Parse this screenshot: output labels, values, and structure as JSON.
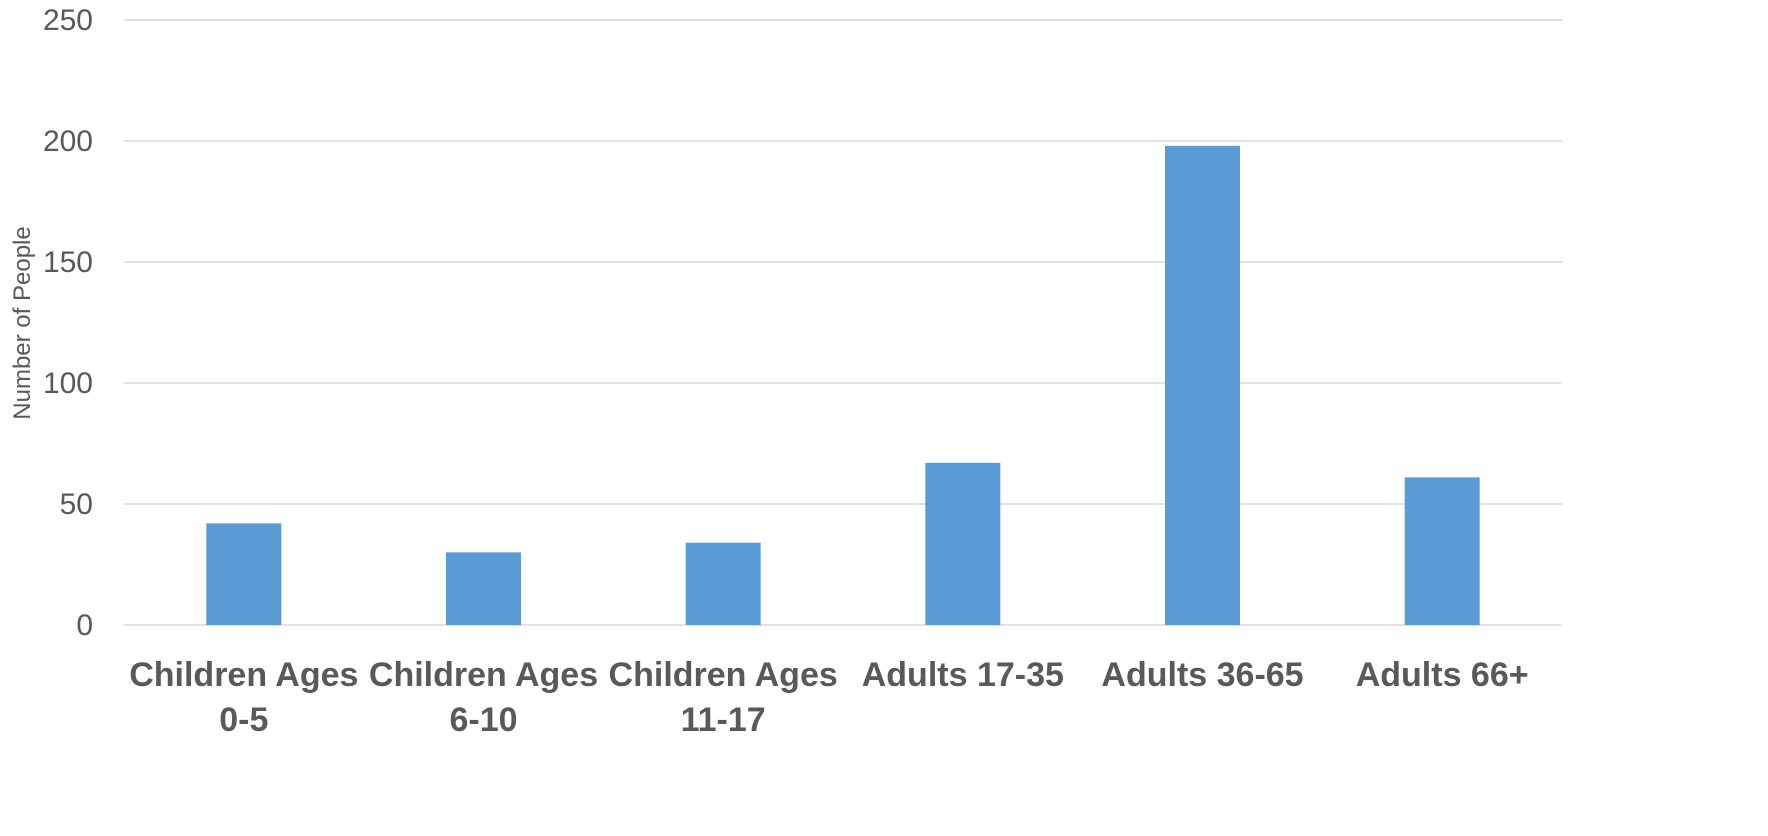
{
  "chart_data": {
    "type": "bar",
    "title": "",
    "xlabel": "",
    "ylabel": "Number of People",
    "ylim": [
      0,
      250
    ],
    "y_ticks": [
      0,
      50,
      100,
      150,
      200,
      250
    ],
    "y_tick_labels": [
      "0",
      "50",
      "100",
      "150",
      "200",
      "250"
    ],
    "grid": true,
    "legend": "none",
    "categories": [
      [
        "Children Ages",
        "0-5"
      ],
      [
        "Children Ages",
        "6-10"
      ],
      [
        "Children Ages",
        "11-17"
      ],
      [
        "Adults 17-35"
      ],
      [
        "Adults 36-65"
      ],
      [
        "Adults 66+"
      ]
    ],
    "values": [
      42,
      30,
      34,
      67,
      198,
      61
    ],
    "bar_color": "#5b9bd5",
    "grid_color": "#d9d9d9",
    "text_color": "#595959"
  }
}
